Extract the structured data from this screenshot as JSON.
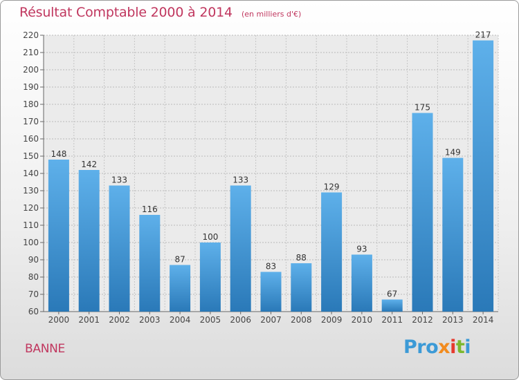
{
  "chart_data": {
    "type": "bar",
    "title": "Résultat Comptable 2000 à 2014",
    "subtitle": "(en milliers d'€)",
    "xlabel": "",
    "ylabel": "",
    "categories": [
      "2000",
      "2001",
      "2002",
      "2003",
      "2004",
      "2005",
      "2006",
      "2007",
      "2008",
      "2009",
      "2010",
      "2011",
      "2012",
      "2013",
      "2014"
    ],
    "values": [
      148,
      142,
      133,
      116,
      87,
      100,
      133,
      83,
      88,
      129,
      93,
      67,
      175,
      149,
      217
    ],
    "ylim": [
      60,
      220
    ],
    "yticks": [
      60,
      70,
      80,
      90,
      100,
      110,
      120,
      130,
      140,
      150,
      160,
      170,
      180,
      190,
      200,
      210,
      220
    ],
    "grid": true,
    "bar_color": "#3d8fd0"
  },
  "footer": {
    "commune": "BANNE",
    "logo_parts": [
      "Pro",
      "x",
      "i",
      "t",
      "i"
    ]
  },
  "colors": {
    "title": "#c0365e",
    "bar_light": "#5eb0ea",
    "bar_dark": "#2a79b8"
  }
}
